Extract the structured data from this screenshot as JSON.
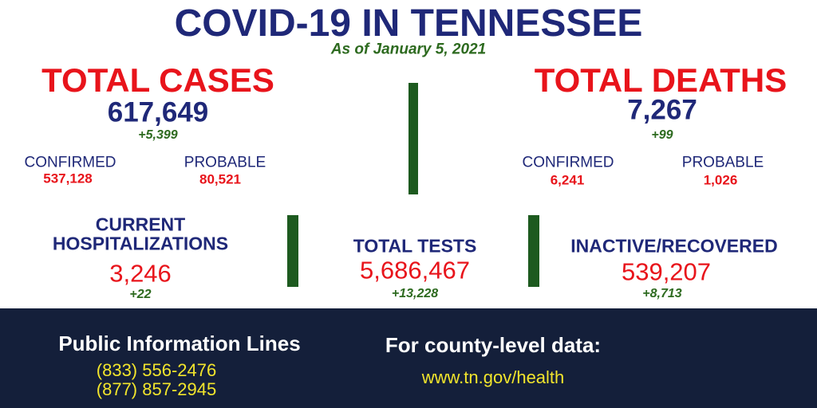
{
  "header": {
    "title": "COVID-19 IN TENNESSEE",
    "subtitle": "As of January 5, 2021"
  },
  "total_cases": {
    "label": "TOTAL CASES",
    "value": "617,649",
    "change": "+5,399",
    "confirmed": {
      "label": "CONFIRMED",
      "value": "537,128"
    },
    "probable": {
      "label": "PROBABLE",
      "value": "80,521"
    }
  },
  "total_deaths": {
    "label": "TOTAL DEATHS",
    "value": "7,267",
    "change": "+99",
    "confirmed": {
      "label": "CONFIRMED",
      "value": "6,241"
    },
    "probable": {
      "label": "PROBABLE",
      "value": "1,026"
    }
  },
  "hospitalizations": {
    "label_lines": [
      "CURRENT",
      "HOSPITALIZATIONS"
    ],
    "value": "3,246",
    "change": "+22"
  },
  "total_tests": {
    "label": "TOTAL TESTS",
    "value": "5,686,467",
    "change": "+13,228"
  },
  "recovered": {
    "label": "INACTIVE/RECOVERED",
    "value": "539,207",
    "change": "+8,713"
  },
  "footer": {
    "info_title": "Public Information Lines",
    "phones": [
      "(833) 556-2476",
      "(877) 857-2945"
    ],
    "county_title": "For county-level data:",
    "url": "www.tn.gov/health"
  }
}
